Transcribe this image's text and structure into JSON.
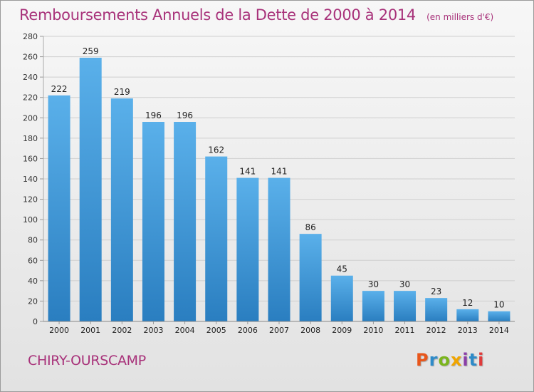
{
  "header": {
    "title": "Remboursements Annuels de la Dette de 2000 à 2014",
    "unit": "(en milliers d'€)"
  },
  "footer": {
    "place": "CHIRY-OURSCAMP",
    "brand": "Proxiti",
    "brand_colors": [
      "#e8561b",
      "#2e8bc9",
      "#7ab51d",
      "#f0a500",
      "#8a3ea8",
      "#2e8bc9",
      "#e03a3a"
    ]
  },
  "colors": {
    "bar_top": "#5ab0ea",
    "bar_bottom": "#2a7ec0",
    "accent": "#a8327a",
    "grid": "#cfcfcf"
  },
  "chart_data": {
    "type": "bar",
    "title": "Remboursements Annuels de la Dette de 2000 à 2014",
    "subtitle": "(en milliers d'€)",
    "xlabel": "",
    "ylabel": "",
    "categories": [
      "2000",
      "2001",
      "2002",
      "2003",
      "2004",
      "2005",
      "2006",
      "2007",
      "2008",
      "2009",
      "2010",
      "2011",
      "2012",
      "2013",
      "2014"
    ],
    "values": [
      222,
      259,
      219,
      196,
      196,
      162,
      141,
      141,
      86,
      45,
      30,
      30,
      23,
      12,
      10
    ],
    "ylim": [
      0,
      280
    ],
    "yticks": [
      0,
      20,
      40,
      60,
      80,
      100,
      120,
      140,
      160,
      180,
      200,
      220,
      240,
      260,
      280
    ],
    "grid": true,
    "legend": "none",
    "data_labels": true
  }
}
